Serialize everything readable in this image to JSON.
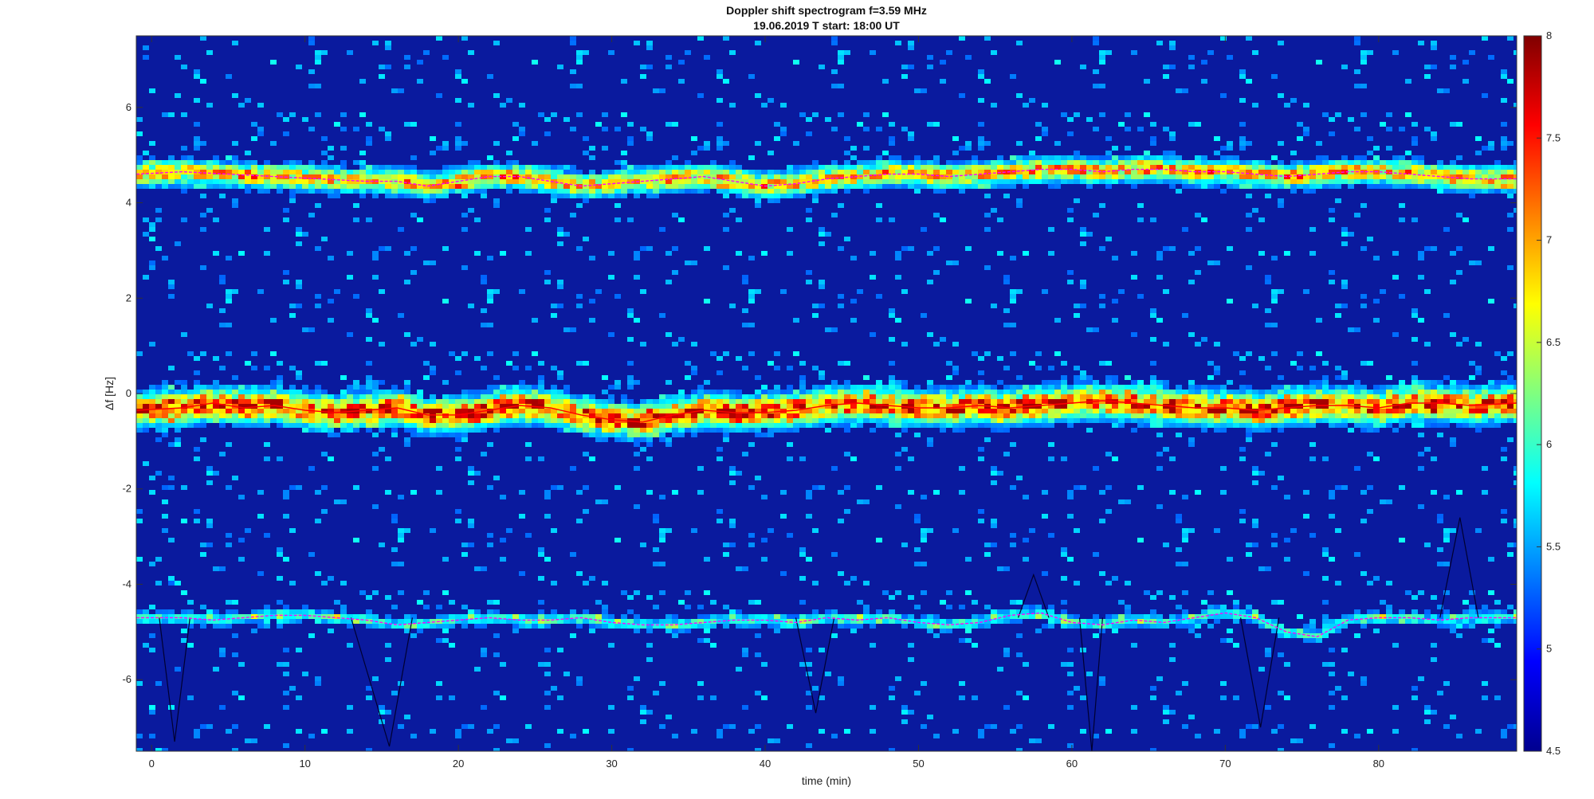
{
  "chart_data": {
    "type": "heatmap",
    "title": "Doppler shift spectrogram f=3.59 MHz",
    "subtitle": "19.06.2019   T start: 18:00 UT",
    "xlabel": "time (min)",
    "ylabel": "Δf [Hz]",
    "xlim": [
      -1,
      89
    ],
    "ylim": [
      -7.5,
      7.5
    ],
    "x_ticks": [
      0,
      10,
      20,
      30,
      40,
      50,
      60,
      70,
      80
    ],
    "y_ticks": [
      -6,
      -4,
      -2,
      0,
      2,
      4,
      6
    ],
    "colorbar": {
      "range": [
        4.5,
        8
      ],
      "ticks": [
        4.5,
        5,
        5.5,
        6,
        6.5,
        7,
        7.5,
        8
      ],
      "colormap": "jet"
    },
    "traces": [
      {
        "band": "upper",
        "color": "#ff00ff",
        "points": [
          [
            -1,
            4.6
          ],
          [
            2,
            4.65
          ],
          [
            5,
            4.6
          ],
          [
            8,
            4.55
          ],
          [
            11,
            4.5
          ],
          [
            14,
            4.45
          ],
          [
            16,
            4.45
          ],
          [
            18,
            4.35
          ],
          [
            20,
            4.45
          ],
          [
            22,
            4.55
          ],
          [
            24,
            4.55
          ],
          [
            26,
            4.45
          ],
          [
            28,
            4.35
          ],
          [
            30,
            4.4
          ],
          [
            32,
            4.45
          ],
          [
            34,
            4.5
          ],
          [
            36,
            4.55
          ],
          [
            38,
            4.45
          ],
          [
            40,
            4.35
          ],
          [
            42,
            4.4
          ],
          [
            44,
            4.5
          ],
          [
            46,
            4.55
          ],
          [
            48,
            4.6
          ],
          [
            50,
            4.6
          ],
          [
            52,
            4.55
          ],
          [
            54,
            4.6
          ],
          [
            56,
            4.65
          ],
          [
            58,
            4.7
          ],
          [
            60,
            4.7
          ],
          [
            62,
            4.65
          ],
          [
            64,
            4.7
          ],
          [
            66,
            4.7
          ],
          [
            68,
            4.65
          ],
          [
            70,
            4.65
          ],
          [
            72,
            4.6
          ],
          [
            74,
            4.55
          ],
          [
            76,
            4.6
          ],
          [
            78,
            4.65
          ],
          [
            80,
            4.65
          ],
          [
            82,
            4.6
          ],
          [
            84,
            4.55
          ],
          [
            86,
            4.5
          ],
          [
            89,
            4.5
          ]
        ]
      },
      {
        "band": "middle",
        "color": "#ff0000",
        "points": [
          [
            -1,
            -0.35
          ],
          [
            2,
            -0.3
          ],
          [
            4,
            -0.2
          ],
          [
            6,
            -0.3
          ],
          [
            8,
            -0.25
          ],
          [
            10,
            -0.35
          ],
          [
            12,
            -0.4
          ],
          [
            14,
            -0.35
          ],
          [
            16,
            -0.3
          ],
          [
            18,
            -0.45
          ],
          [
            20,
            -0.45
          ],
          [
            22,
            -0.35
          ],
          [
            24,
            -0.25
          ],
          [
            26,
            -0.3
          ],
          [
            28,
            -0.45
          ],
          [
            30,
            -0.55
          ],
          [
            32,
            -0.6
          ],
          [
            34,
            -0.45
          ],
          [
            36,
            -0.35
          ],
          [
            38,
            -0.4
          ],
          [
            40,
            -0.4
          ],
          [
            42,
            -0.35
          ],
          [
            44,
            -0.25
          ],
          [
            46,
            -0.2
          ],
          [
            48,
            -0.25
          ],
          [
            50,
            -0.3
          ],
          [
            52,
            -0.3
          ],
          [
            54,
            -0.25
          ],
          [
            56,
            -0.3
          ],
          [
            58,
            -0.25
          ],
          [
            60,
            -0.2
          ],
          [
            62,
            -0.15
          ],
          [
            64,
            -0.2
          ],
          [
            66,
            -0.25
          ],
          [
            68,
            -0.3
          ],
          [
            70,
            -0.3
          ],
          [
            72,
            -0.35
          ],
          [
            74,
            -0.3
          ],
          [
            76,
            -0.25
          ],
          [
            78,
            -0.25
          ],
          [
            80,
            -0.3
          ],
          [
            82,
            -0.2
          ],
          [
            84,
            -0.2
          ],
          [
            86,
            -0.25
          ],
          [
            89,
            -0.2
          ]
        ]
      },
      {
        "band": "lower",
        "color": "#ff00ff",
        "points": [
          [
            -1,
            -4.7
          ],
          [
            2,
            -4.7
          ],
          [
            4,
            -4.75
          ],
          [
            6,
            -4.7
          ],
          [
            8,
            -4.65
          ],
          [
            10,
            -4.65
          ],
          [
            12,
            -4.7
          ],
          [
            14,
            -4.75
          ],
          [
            16,
            -4.85
          ],
          [
            18,
            -4.8
          ],
          [
            20,
            -4.75
          ],
          [
            22,
            -4.7
          ],
          [
            24,
            -4.75
          ],
          [
            26,
            -4.75
          ],
          [
            28,
            -4.7
          ],
          [
            30,
            -4.8
          ],
          [
            32,
            -4.85
          ],
          [
            34,
            -4.85
          ],
          [
            36,
            -4.8
          ],
          [
            38,
            -4.75
          ],
          [
            40,
            -4.75
          ],
          [
            42,
            -4.8
          ],
          [
            44,
            -4.7
          ],
          [
            46,
            -4.75
          ],
          [
            48,
            -4.7
          ],
          [
            50,
            -4.8
          ],
          [
            52,
            -4.85
          ],
          [
            54,
            -4.8
          ],
          [
            56,
            -4.65
          ],
          [
            58,
            -4.6
          ],
          [
            60,
            -4.8
          ],
          [
            62,
            -4.85
          ],
          [
            64,
            -4.75
          ],
          [
            66,
            -4.8
          ],
          [
            68,
            -4.7
          ],
          [
            70,
            -4.6
          ],
          [
            72,
            -4.7
          ],
          [
            74,
            -5.0
          ],
          [
            76,
            -5.1
          ],
          [
            78,
            -4.75
          ],
          [
            80,
            -4.7
          ],
          [
            82,
            -4.7
          ],
          [
            84,
            -4.75
          ],
          [
            86,
            -4.7
          ],
          [
            89,
            -4.7
          ]
        ]
      }
    ],
    "dark_spikes": [
      {
        "x0": 0.5,
        "x1": 1.5,
        "x2": 2.5,
        "y_bottom": -7.3
      },
      {
        "x0": 13,
        "x1": 15.5,
        "x2": 17,
        "y_bottom": -7.4
      },
      {
        "x0": 42,
        "x1": 43.3,
        "x2": 44.5,
        "y_bottom": -6.7
      },
      {
        "x0": 56.5,
        "x1": 57.5,
        "x2": 58.5,
        "y_bottom": -3.8
      },
      {
        "x0": 60.5,
        "x1": 61.3,
        "x2": 62,
        "y_bottom": -7.5
      },
      {
        "x0": 71,
        "x1": 72.3,
        "x2": 73.5,
        "y_bottom": -7.0
      },
      {
        "x0": 84,
        "x1": 85.3,
        "x2": 86.5,
        "y_bottom": -2.6
      }
    ]
  }
}
